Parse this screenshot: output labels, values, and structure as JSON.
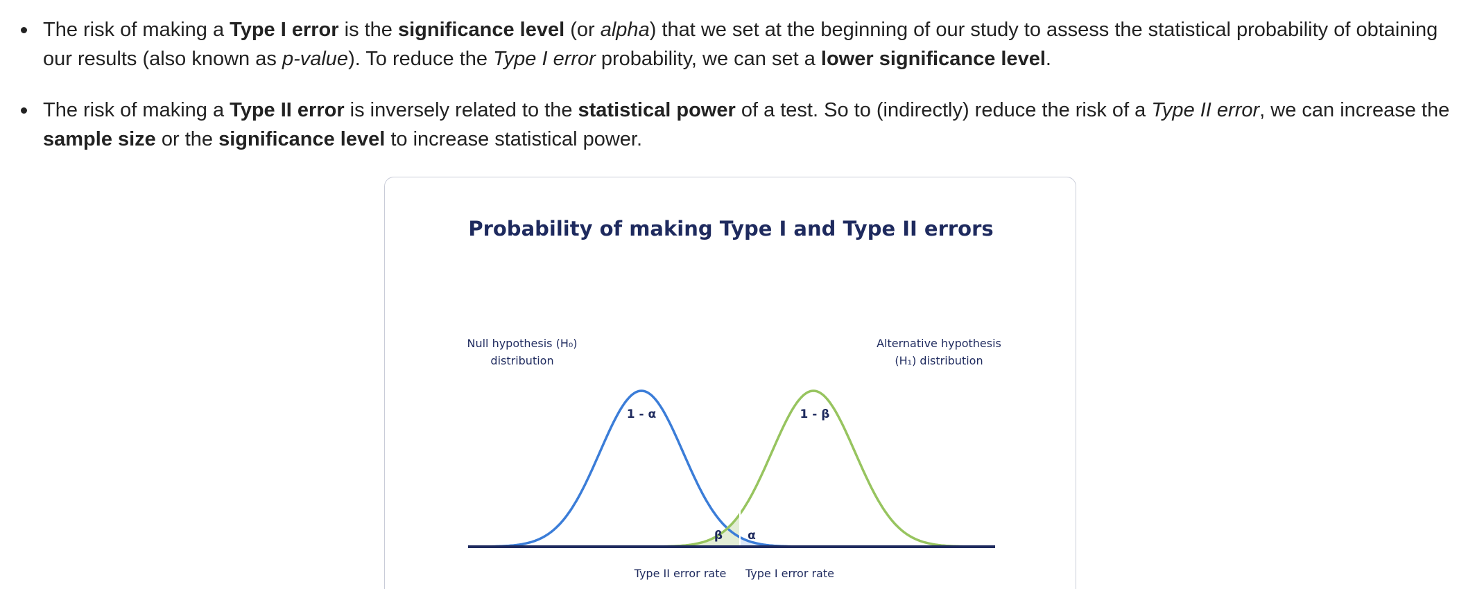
{
  "bullets": [
    {
      "segments": [
        {
          "t": "The risk of making a ",
          "s": "n"
        },
        {
          "t": "Type I error",
          "s": "b"
        },
        {
          "t": " is the ",
          "s": "n"
        },
        {
          "t": "significance level",
          "s": "b"
        },
        {
          "t": " (or ",
          "s": "n"
        },
        {
          "t": "alpha",
          "s": "i"
        },
        {
          "t": ") that we set at the beginning of our study to assess the statistical probability of obtaining our results (also known as ",
          "s": "n"
        },
        {
          "t": "p-value",
          "s": "i"
        },
        {
          "t": "). To reduce the ",
          "s": "n"
        },
        {
          "t": "Type I error",
          "s": "i"
        },
        {
          "t": " probability, we can set a ",
          "s": "n"
        },
        {
          "t": "lower significance level",
          "s": "b"
        },
        {
          "t": ".",
          "s": "n"
        }
      ]
    },
    {
      "segments": [
        {
          "t": "The risk of making a ",
          "s": "n"
        },
        {
          "t": "Type II error",
          "s": "b"
        },
        {
          "t": " is inversely related to the ",
          "s": "n"
        },
        {
          "t": "statistical power",
          "s": "b"
        },
        {
          "t": " of a test. So to (indirectly) reduce the risk of a ",
          "s": "n"
        },
        {
          "t": "Type II error",
          "s": "i"
        },
        {
          "t": ", we can increase the ",
          "s": "n"
        },
        {
          "t": "sample size",
          "s": "b"
        },
        {
          "t": " or the ",
          "s": "n"
        },
        {
          "t": "significance level",
          "s": "b"
        },
        {
          "t": " to increase statistical power.",
          "s": "n"
        }
      ]
    }
  ],
  "figure": {
    "title": "Probability of making Type I and Type II errors",
    "null_label_line1": "Null hypothesis (H₀)",
    "null_label_line2": "distribution",
    "alt_label_line1": "Alternative hypothesis",
    "alt_label_line2": "(H₁) distribution",
    "null_area_label": "1 - α",
    "alt_area_label": "1 - β",
    "beta_label": "β",
    "alpha_label": "α",
    "type2_label": "Type II error rate",
    "type1_label": "Type I error rate",
    "colors": {
      "null_curve": "#3b7dd8",
      "alt_curve": "#97c45f",
      "beta_fill": "#e3edd6",
      "alpha_fill": "#dde8f7",
      "baseline": "#1e2a5e",
      "text": "#1e2a5e"
    }
  }
}
